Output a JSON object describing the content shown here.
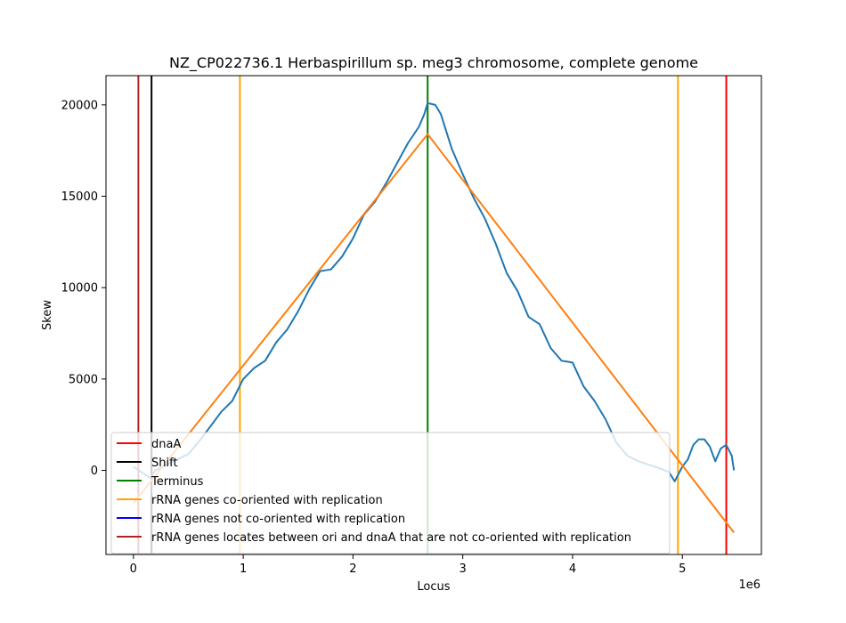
{
  "chart_data": {
    "type": "line",
    "title": "NZ_CP022736.1 Herbaspirillum sp. meg3 chromosome, complete genome",
    "xlabel": "Locus",
    "ylabel": "Skew",
    "x_offset_label": "1e6",
    "xlim": [
      -250000,
      5720000
    ],
    "ylim": [
      -4600,
      21600
    ],
    "x_ticks": [
      0,
      1000000,
      2000000,
      3000000,
      4000000,
      5000000
    ],
    "x_tick_labels": [
      "0",
      "1",
      "2",
      "3",
      "4",
      "5"
    ],
    "y_ticks": [
      0,
      5000,
      10000,
      15000,
      20000
    ],
    "y_tick_labels": [
      "0",
      "5000",
      "10000",
      "15000",
      "20000"
    ],
    "colors": {
      "skew": "#1f77b4",
      "fit": "#ff7f0e",
      "dnaA": "#ff0000",
      "shift": "#000000",
      "terminus": "#008000",
      "rrna_co": "#ffa500",
      "rrna_not_co": "#0000ff",
      "rrna_between": "#b22222"
    },
    "series": [
      {
        "name": "",
        "color": "#1f77b4",
        "x": [
          0,
          50000,
          100000,
          150000,
          200000,
          300000,
          400000,
          500000,
          600000,
          700000,
          800000,
          900000,
          1000000,
          1100000,
          1200000,
          1300000,
          1400000,
          1500000,
          1600000,
          1700000,
          1800000,
          1900000,
          2000000,
          2100000,
          2200000,
          2300000,
          2400000,
          2500000,
          2600000,
          2650000,
          2680000,
          2750000,
          2800000,
          2900000,
          3000000,
          3100000,
          3200000,
          3300000,
          3400000,
          3500000,
          3600000,
          3700000,
          3800000,
          3900000,
          4000000,
          4100000,
          4200000,
          4300000,
          4400000,
          4500000,
          4600000,
          4700000,
          4800000,
          4880000,
          4930000,
          5000000,
          5050000,
          5100000,
          5150000,
          5200000,
          5250000,
          5300000,
          5350000,
          5400000,
          5450000,
          5470000
        ],
        "y": [
          200,
          0,
          -200,
          -400,
          0,
          300,
          600,
          900,
          1600,
          2400,
          3200,
          3800,
          5000,
          5600,
          6000,
          7000,
          7700,
          8700,
          9900,
          10900,
          11000,
          11700,
          12700,
          14000,
          14700,
          15700,
          16800,
          17900,
          18800,
          19500,
          20100,
          20000,
          19500,
          17600,
          16200,
          14900,
          13800,
          12400,
          10800,
          9800,
          8400,
          8000,
          6700,
          6000,
          5900,
          4600,
          3800,
          2800,
          1500,
          800,
          500,
          300,
          100,
          -100,
          -600,
          200,
          600,
          1400,
          1700,
          1700,
          1300,
          500,
          1200,
          1400,
          800,
          0
        ]
      },
      {
        "name": "",
        "color": "#ff7f0e",
        "x": [
          0,
          2680000,
          5470000
        ],
        "y": [
          -1800,
          18400,
          -3400
        ]
      }
    ],
    "vertical_lines": [
      {
        "name": "dnaA",
        "x": 5400000,
        "color": "#ff0000"
      },
      {
        "name": "Shift",
        "x": 165000,
        "color": "#000000"
      },
      {
        "name": "Terminus",
        "x": 2680000,
        "color": "#008000"
      },
      {
        "name": "rRNA genes co-oriented with replication",
        "x": 970000,
        "color": "#ffa500"
      },
      {
        "name": "rRNA genes co-oriented with replication",
        "x": 4960000,
        "color": "#ffa500"
      },
      {
        "name": "rRNA genes locates between ori and dnaA that are not co-oriented with replication",
        "x": 45000,
        "color": "#b22222"
      }
    ],
    "legend": {
      "position": "lower-left",
      "entries": [
        {
          "label": "dnaA",
          "color": "#ff0000"
        },
        {
          "label": "Shift",
          "color": "#000000"
        },
        {
          "label": "Terminus",
          "color": "#008000"
        },
        {
          "label": "rRNA genes co-oriented with replication",
          "color": "#ffa500"
        },
        {
          "label": "rRNA genes not co-oriented with replication",
          "color": "#0000ff"
        },
        {
          "label": "rRNA genes locates between ori and dnaA that are not co-oriented with replication",
          "color": "#b22222"
        }
      ]
    },
    "grid": false
  }
}
